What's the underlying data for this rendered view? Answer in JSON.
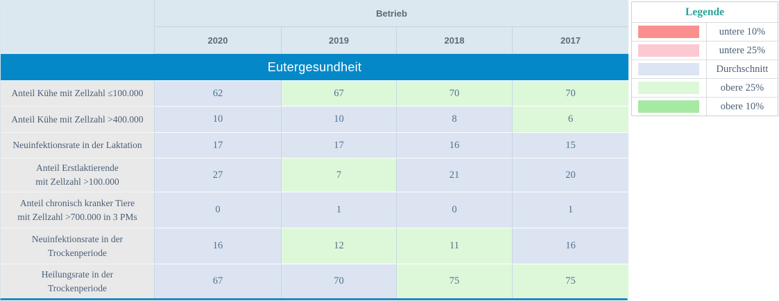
{
  "chart_data": {
    "type": "table",
    "title": "Eutergesundheit",
    "column_group": "Betrieb",
    "columns": [
      "2020",
      "2019",
      "2018",
      "2017"
    ],
    "rows": [
      {
        "label": "Anteil Kühe mit Zellzahl ≤100.000",
        "values": [
          62,
          67,
          70,
          70
        ],
        "states": [
          "durchschnitt",
          "obere_25",
          "obere_25",
          "obere_25"
        ]
      },
      {
        "label": "Anteil Kühe mit Zellzahl >400.000",
        "values": [
          10,
          10,
          8,
          6
        ],
        "states": [
          "durchschnitt",
          "durchschnitt",
          "durchschnitt",
          "obere_25"
        ]
      },
      {
        "label": "Neuinfektionsrate in der Laktation",
        "values": [
          17,
          17,
          16,
          15
        ],
        "states": [
          "durchschnitt",
          "durchschnitt",
          "durchschnitt",
          "durchschnitt"
        ]
      },
      {
        "label": "Anteil Erstlaktierende\nmit Zellzahl >100.000",
        "values": [
          27,
          7,
          21,
          20
        ],
        "states": [
          "durchschnitt",
          "obere_25",
          "durchschnitt",
          "durchschnitt"
        ]
      },
      {
        "label": "Anteil chronisch kranker Tiere\nmit Zellzahl >700.000 in 3 PMs",
        "values": [
          0,
          1,
          0,
          1
        ],
        "states": [
          "durchschnitt",
          "durchschnitt",
          "durchschnitt",
          "durchschnitt"
        ]
      },
      {
        "label": "Neuinfektionsrate in der\nTrockenperiode",
        "values": [
          16,
          12,
          11,
          16
        ],
        "states": [
          "durchschnitt",
          "obere_25",
          "obere_25",
          "durchschnitt"
        ]
      },
      {
        "label": "Heilungsrate in der\nTrockenperiode",
        "values": [
          67,
          70,
          75,
          75
        ],
        "states": [
          "durchschnitt",
          "durchschnitt",
          "obere_25",
          "obere_25"
        ]
      }
    ]
  },
  "legend": {
    "title": "Legende",
    "items": [
      {
        "label": "untere 10%",
        "color": "#fa908e"
      },
      {
        "label": "untere 25%",
        "color": "#fcc8d1"
      },
      {
        "label": "Durchschnitt",
        "color": "#dde4f3"
      },
      {
        "label": "obere 25%",
        "color": "#ddf8d9"
      },
      {
        "label": "obere 10%",
        "color": "#a6e9a2"
      }
    ]
  },
  "colors": {
    "section_header_bg": "#0588c8",
    "header_bg": "#dce8f0",
    "label_cell_bg": "#e9e9e9",
    "table_bottom_border": "#1e88c2",
    "legend_title_color": "#2aa49a",
    "cell_states": {
      "durchschnitt": "#dce4f1",
      "obere_25": "#ddf8d9"
    }
  }
}
